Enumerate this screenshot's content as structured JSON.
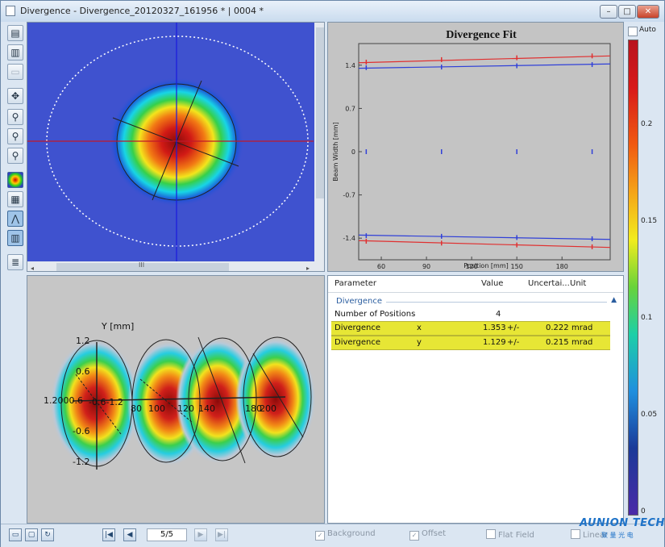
{
  "window": {
    "title": "Divergence - Divergence_20120327_161956 * | 0004 *",
    "buttons": [
      "minimize",
      "maximize",
      "close"
    ]
  },
  "toolbar": {
    "tools": [
      {
        "icon": "save-icon"
      },
      {
        "icon": "save-as-icon"
      },
      {
        "icon": "clear-icon"
      },
      {
        "icon": "move-icon"
      },
      {
        "icon": "zoom-in-icon"
      },
      {
        "icon": "zoom-out-icon"
      },
      {
        "icon": "zoom-fit-icon"
      },
      {
        "icon": "false-color-icon",
        "active": true
      },
      {
        "icon": "3d-view-icon"
      },
      {
        "icon": "fit-view-icon",
        "active": true
      },
      {
        "icon": "grid-icon",
        "active": true
      },
      {
        "icon": "report-icon"
      }
    ]
  },
  "beam_view": {
    "scroll_label": "III"
  },
  "fit_chart": {
    "chart_data": {
      "type": "line",
      "title": "Divergence Fit",
      "xlabel": "Position [mm]",
      "ylabel": "Beam Width [mm]",
      "xlim": [
        45,
        212
      ],
      "ylim": [
        -1.75,
        1.75
      ],
      "xticks": [
        60,
        90,
        120,
        150,
        180
      ],
      "yticks": [
        1.4,
        0.7,
        0,
        -0.7,
        -1.4
      ],
      "grid": false,
      "series": [
        {
          "color": "#e03030",
          "x": [
            50,
            100,
            150,
            200
          ],
          "values": [
            1.45,
            1.49,
            1.52,
            1.55
          ],
          "fit": [
            1.44,
            1.55
          ]
        },
        {
          "color": "#3040d8",
          "x": [
            50,
            100,
            150,
            200
          ],
          "values": [
            1.36,
            1.37,
            1.39,
            1.41
          ],
          "fit": [
            1.35,
            1.42
          ]
        },
        {
          "color": "#3040d8",
          "x": [
            50,
            100,
            150,
            200
          ],
          "values": [
            0,
            0,
            0,
            0
          ]
        },
        {
          "color": "#3040d8",
          "x": [
            50,
            100,
            150,
            200
          ],
          "values": [
            -1.36,
            -1.37,
            -1.39,
            -1.41
          ],
          "fit": [
            -1.35,
            -1.42
          ]
        },
        {
          "color": "#e03030",
          "x": [
            50,
            100,
            150,
            200
          ],
          "values": [
            -1.45,
            -1.48,
            -1.51,
            -1.54
          ],
          "fit": [
            -1.44,
            -1.55
          ]
        }
      ]
    }
  },
  "view3d": {
    "axis_title": "Y [mm]",
    "y_ticks": [
      "1.2",
      "0.6",
      "-0.6",
      "-1.2"
    ],
    "x_cluster": "1.2000.6",
    "x_mid": "-0.6-1.2",
    "pos_ticks": [
      "80",
      "100",
      "120",
      "140",
      "180",
      "200"
    ]
  },
  "params": {
    "headers": {
      "parameter": "Parameter",
      "value": "Value",
      "uncertainty": "Uncertai...",
      "unit": "Unit"
    },
    "group": "Divergence",
    "count_row": {
      "label": "Number of Positions",
      "value": "4"
    },
    "rows": [
      {
        "name": "Divergence",
        "axis": "x",
        "value": "1.353",
        "pm": "+/-",
        "uncertainty": "0.222",
        "unit": "mrad"
      },
      {
        "name": "Divergence",
        "axis": "y",
        "value": "1.129",
        "pm": "+/-",
        "uncertainty": "0.215",
        "unit": "mrad"
      }
    ]
  },
  "colorbar": {
    "auto_label": "Auto",
    "ticks": [
      "0.2",
      "0.15",
      "0.1",
      "0.05",
      "0"
    ]
  },
  "statusbar": {
    "page": "5/5",
    "checks": [
      {
        "label": "Background",
        "checked": true
      },
      {
        "label": "Offset",
        "checked": true
      },
      {
        "label": "Flat Field",
        "checked": false
      },
      {
        "label": "Linear",
        "checked": false
      }
    ]
  },
  "watermark": {
    "brand": "AUNION TECH",
    "sub": "聚 量 光 电"
  }
}
